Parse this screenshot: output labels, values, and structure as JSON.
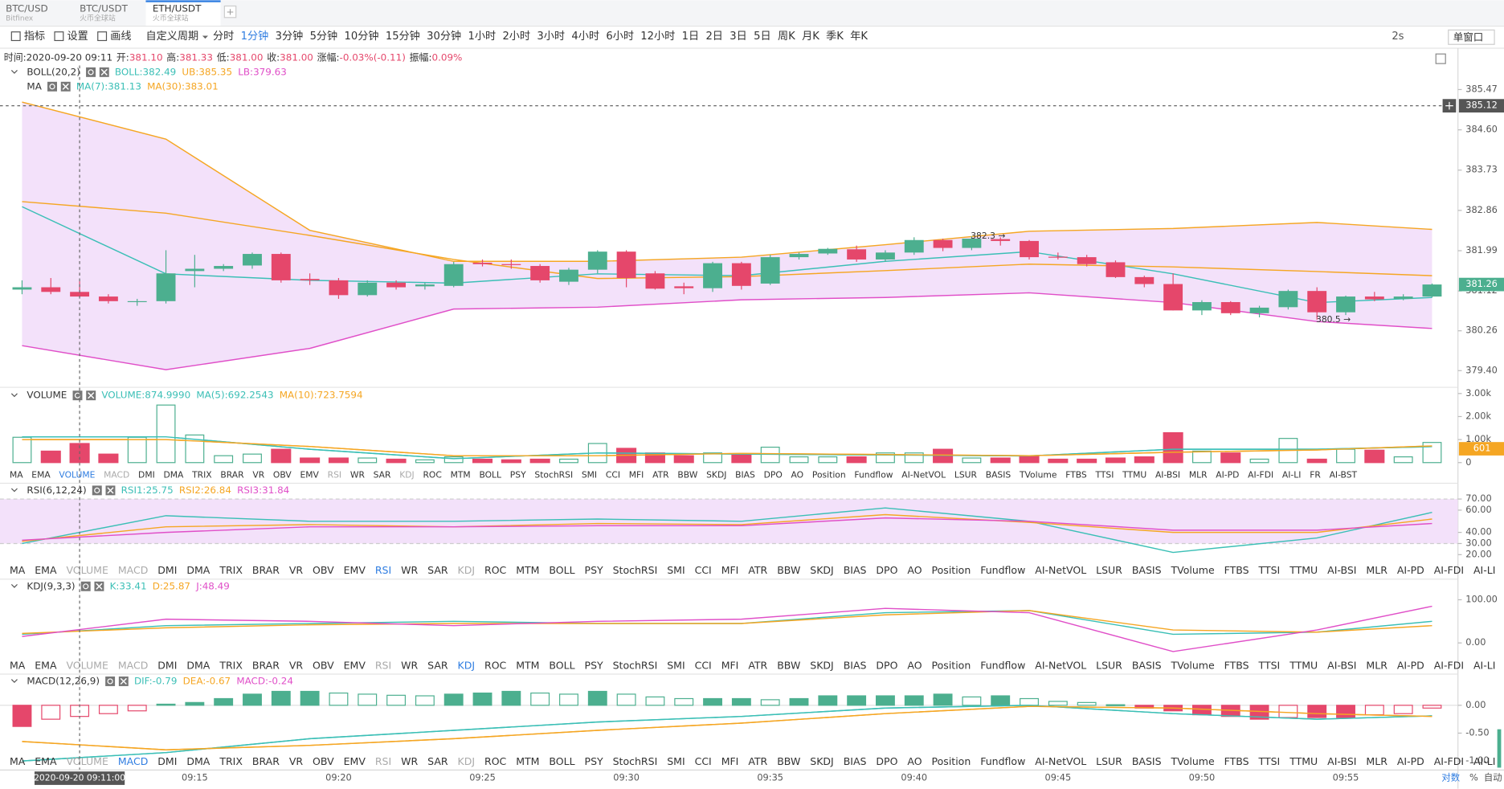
{
  "tabs": [
    {
      "symbol": "BTC/USD",
      "exchange": "Bitfinex"
    },
    {
      "symbol": "BTC/USDT",
      "exchange": "火币全球站"
    },
    {
      "symbol": "ETH/USDT",
      "exchange": "火币全球站"
    }
  ],
  "toolbar": {
    "tools": [
      "指标",
      "设置",
      "画线"
    ],
    "custom": "自定义周期",
    "periods": [
      "分时",
      "1分钟",
      "3分钟",
      "5分钟",
      "10分钟",
      "15分钟",
      "30分钟",
      "1小时",
      "2小时",
      "3小时",
      "4小时",
      "6小时",
      "12小时",
      "1日",
      "2日",
      "3日",
      "5日",
      "周K",
      "月K",
      "季K",
      "年K"
    ],
    "active_period": 1,
    "refresh": "2s",
    "window": "单窗口"
  },
  "info": [
    {
      "label": "时间:",
      "value": "2020-09-20 09:11",
      "color": "#333333"
    },
    {
      "label": "开:",
      "value": "381.10",
      "color": "#e5476b"
    },
    {
      "label": "高:",
      "value": "381.33",
      "color": "#e5476b"
    },
    {
      "label": "低:",
      "value": "381.00",
      "color": "#e5476b"
    },
    {
      "label": "收:",
      "value": "381.00",
      "color": "#e5476b"
    },
    {
      "label": "涨幅:",
      "value": "-0.03%(-0.11)",
      "color": "#e5476b"
    },
    {
      "label": "振幅:",
      "value": "0.09%",
      "color": "#e5476b"
    }
  ],
  "indicators": [
    "MA",
    "EMA",
    "VOLUME",
    "MACD",
    "DMI",
    "DMA",
    "TRIX",
    "BRAR",
    "VR",
    "OBV",
    "EMV",
    "RSI",
    "WR",
    "SAR",
    "KDJ",
    "ROC",
    "MTM",
    "BOLL",
    "PSY",
    "StochRSI",
    "SMI",
    "CCI",
    "MFI",
    "ATR",
    "BBW",
    "SKDJ",
    "BIAS",
    "DPO",
    "AO",
    "Position",
    "Fundflow",
    "AI-NetVOL",
    "LSUR",
    "BASIS",
    "TVolume",
    "FTBS",
    "TTSI",
    "TTMU",
    "AI-BSI",
    "MLR",
    "AI-PD",
    "AI-FDI",
    "AI-LI",
    "FR",
    "AI-BST"
  ],
  "footer": [
    "对数",
    "%",
    "自动"
  ],
  "chart_data": [
    {
      "type": "candlestick",
      "up_color": "#4caf8f",
      "down_color": "#e5476b",
      "legend_rows": [
        {
          "title": "BOLL(20,2)",
          "items": [
            {
              "text": "BOLL:382.49",
              "color": "#3bbfb6"
            },
            {
              "text": "UB:385.35",
              "color": "#f5a623"
            },
            {
              "text": "LB:379.63",
              "color": "#e04fc8"
            }
          ]
        },
        {
          "title": "MA",
          "items": [
            {
              "text": "MA(7):381.13",
              "color": "#3bbfb6"
            },
            {
              "text": "MA(30):383.01",
              "color": "#f5a623"
            }
          ]
        }
      ],
      "categories": [
        null,
        null,
        null,
        null,
        null,
        null,
        "09:15",
        null,
        null,
        null,
        null,
        "09:20",
        null,
        null,
        null,
        null,
        "09:25",
        null,
        null,
        null,
        null,
        "09:30",
        null,
        null,
        null,
        null,
        "09:35",
        null,
        null,
        null,
        null,
        "09:40",
        null,
        null,
        null,
        null,
        "09:45",
        null,
        null,
        null,
        null,
        "09:50",
        null,
        null,
        null,
        null,
        "09:55",
        null,
        null,
        null
      ],
      "candles": [
        [
          381.15,
          381.35,
          381.05,
          381.2
        ],
        [
          381.2,
          381.4,
          381.05,
          381.1
        ],
        [
          381.1,
          381.33,
          381.0,
          381.0
        ],
        [
          381.0,
          381.05,
          380.85,
          380.9
        ],
        [
          380.88,
          380.95,
          380.8,
          380.9
        ],
        [
          380.9,
          382.0,
          380.85,
          381.5
        ],
        [
          381.55,
          381.9,
          381.2,
          381.6
        ],
        [
          381.6,
          381.7,
          381.55,
          381.66
        ],
        [
          381.67,
          381.95,
          381.6,
          381.92
        ],
        [
          381.92,
          381.95,
          381.3,
          381.35
        ],
        [
          381.38,
          381.5,
          381.25,
          381.35
        ],
        [
          381.35,
          381.4,
          380.95,
          381.03
        ],
        [
          381.03,
          381.35,
          381.0,
          381.3
        ],
        [
          381.3,
          381.35,
          381.15,
          381.2
        ],
        [
          381.22,
          381.3,
          381.15,
          381.26
        ],
        [
          381.23,
          381.75,
          381.2,
          381.7
        ],
        [
          381.73,
          381.8,
          381.65,
          381.7
        ],
        [
          381.7,
          381.8,
          381.6,
          381.69
        ],
        [
          381.66,
          381.7,
          381.3,
          381.35
        ],
        [
          381.32,
          381.62,
          381.25,
          381.58
        ],
        [
          381.58,
          382.0,
          381.5,
          381.97
        ],
        [
          381.97,
          382.0,
          381.2,
          381.4
        ],
        [
          381.5,
          381.55,
          381.15,
          381.17
        ],
        [
          381.22,
          381.3,
          381.05,
          381.18
        ],
        [
          381.18,
          381.75,
          381.1,
          381.72
        ],
        [
          381.72,
          381.75,
          381.15,
          381.23
        ],
        [
          381.28,
          381.9,
          381.25,
          381.85
        ],
        [
          381.85,
          381.95,
          381.8,
          381.92
        ],
        [
          381.93,
          382.05,
          381.9,
          382.03
        ],
        [
          382.02,
          382.1,
          381.75,
          381.8
        ],
        [
          381.8,
          382.0,
          381.75,
          381.95
        ],
        [
          381.95,
          382.28,
          381.9,
          382.22
        ],
        [
          382.22,
          382.25,
          381.98,
          382.05
        ],
        [
          382.05,
          382.3,
          382.0,
          382.25
        ],
        [
          382.24,
          382.28,
          382.1,
          382.2
        ],
        [
          382.2,
          382.22,
          381.8,
          381.85
        ],
        [
          381.86,
          381.95,
          381.8,
          381.85
        ],
        [
          381.85,
          381.9,
          381.65,
          381.7
        ],
        [
          381.74,
          381.78,
          381.4,
          381.42
        ],
        [
          381.42,
          381.45,
          381.2,
          381.27
        ],
        [
          381.27,
          381.5,
          380.7,
          380.7
        ],
        [
          380.7,
          380.92,
          380.6,
          380.88
        ],
        [
          380.88,
          380.9,
          380.6,
          380.64
        ],
        [
          380.64,
          380.8,
          380.55,
          380.76
        ],
        [
          380.77,
          381.15,
          380.72,
          381.12
        ],
        [
          381.12,
          381.2,
          380.5,
          380.66
        ],
        [
          380.66,
          381.02,
          380.6,
          381.0
        ],
        [
          381.0,
          381.1,
          380.9,
          380.94
        ],
        [
          380.95,
          381.05,
          380.92,
          381.0
        ],
        [
          381.0,
          381.28,
          380.98,
          381.26
        ]
      ],
      "line_x": [
        0,
        5,
        10,
        15,
        20,
        25,
        30,
        35,
        40,
        45,
        49
      ],
      "band_fill": "#f3e1fa",
      "lines": [
        {
          "color": "#f5a623",
          "values": [
            385.2,
            384.4,
            382.43,
            381.76,
            381.76,
            381.85,
            382.12,
            382.41,
            382.47,
            382.6,
            382.45
          ]
        },
        {
          "color": "#e04fc8",
          "values": [
            379.94,
            379.42,
            379.88,
            380.73,
            380.77,
            380.93,
            380.98,
            381.08,
            380.87,
            380.46,
            380.31
          ]
        },
        {
          "color": "#3bbfb6",
          "values": [
            382.94,
            381.49,
            381.35,
            381.29,
            381.49,
            381.45,
            381.76,
            381.97,
            381.49,
            380.87,
            380.98
          ]
        },
        {
          "color": "#f5a623",
          "values": [
            383.05,
            382.8,
            382.32,
            381.8,
            381.39,
            381.43,
            381.56,
            381.7,
            381.64,
            381.54,
            381.45
          ]
        }
      ],
      "ylim": [
        379.05,
        385.99
      ],
      "yticks": [
        385.47,
        {
          "value": 384.6,
          "label": "384.60"
        },
        383.73,
        382.86,
        381.99,
        381.12,
        380.26,
        {
          "value": 379.4,
          "label": "379.40"
        }
      ],
      "annotations": [
        {
          "text": "382.3 →",
          "index": 33,
          "value": 382.3
        },
        {
          "text": "380.5 →",
          "index": 45,
          "value": 380.5
        }
      ],
      "cursor": {
        "index": 2,
        "price": 385.12,
        "label": "2020-09-20 09:11:00"
      },
      "last_price": 381.26
    },
    {
      "type": "volume",
      "selected": 2,
      "legend_rows": [
        {
          "title": "VOLUME",
          "items": [
            {
              "text": "VOLUME:874.9990",
              "color": "#3bbfb6"
            },
            {
              "text": "MA(5):692.2543",
              "color": "#3bbfb6"
            },
            {
              "text": "MA(10):723.7594",
              "color": "#f5a623"
            }
          ]
        }
      ],
      "values": [
        1100,
        500,
        830,
        370,
        1100,
        2500,
        1200,
        300,
        370,
        580,
        200,
        200,
        200,
        150,
        120,
        250,
        150,
        120,
        150,
        150,
        830,
        620,
        420,
        300,
        420,
        330,
        670,
        250,
        250,
        250,
        420,
        420,
        580,
        200,
        200,
        300,
        150,
        150,
        200,
        250,
        1300,
        500,
        420,
        150,
        1050,
        150,
        580,
        540,
        250,
        875
      ],
      "line_x": [
        0,
        5,
        10,
        15,
        20,
        25,
        30,
        35,
        40,
        45,
        49
      ],
      "lines": [
        {
          "color": "#3bbfb6",
          "values": [
            1120,
            1120,
            580,
            170,
            420,
            370,
            330,
            290,
            580,
            580,
            692
          ]
        },
        {
          "color": "#f5a623",
          "values": [
            1000,
            1000,
            700,
            300,
            300,
            400,
            350,
            300,
            450,
            550,
            724
          ]
        }
      ],
      "ylim": [
        -125,
        3250
      ],
      "yticks": [
        0,
        {
          "value": 1000,
          "label": "1.00k"
        },
        {
          "value": 2000,
          "label": "2.00k"
        },
        {
          "value": 3000,
          "label": "3.00k"
        }
      ],
      "marker": 601
    },
    {
      "type": "line",
      "selected": 11,
      "legend_rows": [
        {
          "title": "RSI(6,12,24)",
          "items": [
            {
              "text": "RSI1:25.75",
              "color": "#3bbfb6"
            },
            {
              "text": "RSI2:26.84",
              "color": "#f5a623"
            },
            {
              "text": "RSI3:31.84",
              "color": "#e04fc8"
            }
          ]
        }
      ],
      "band": [
        30,
        70
      ],
      "band_fill": "#f3e1fa",
      "line_x": [
        0,
        5,
        10,
        15,
        20,
        25,
        30,
        35,
        40,
        45,
        49
      ],
      "lines": [
        {
          "color": "#3bbfb6",
          "values": [
            30,
            55,
            50,
            50,
            52,
            50,
            62,
            50,
            22,
            35,
            58
          ]
        },
        {
          "color": "#f5a623",
          "values": [
            32,
            45,
            47,
            45,
            48,
            47,
            56,
            49,
            40,
            40,
            52
          ]
        },
        {
          "color": "#e04fc8",
          "values": [
            33,
            40,
            45,
            45,
            46,
            46,
            53,
            50,
            42,
            42,
            48
          ]
        }
      ],
      "ylim": [
        12.2,
        82.9
      ],
      "yticks": [
        {
          "value": 20,
          "label": "20.00"
        },
        {
          "value": 30,
          "label": "30.00"
        },
        {
          "value": 40,
          "label": "40.00"
        },
        {
          "value": 60,
          "label": "60.00"
        },
        {
          "value": 70,
          "label": "70.00"
        }
      ]
    },
    {
      "type": "line",
      "selected": 14,
      "legend_rows": [
        {
          "title": "KDJ(9,3,3)",
          "items": [
            {
              "text": "K:33.41",
              "color": "#3bbfb6"
            },
            {
              "text": "D:25.87",
              "color": "#f5a623"
            },
            {
              "text": "J:48.49",
              "color": "#e04fc8"
            }
          ]
        }
      ],
      "line_x": [
        0,
        5,
        10,
        15,
        20,
        25,
        30,
        35,
        40,
        45,
        49
      ],
      "lines": [
        {
          "color": "#3bbfb6",
          "values": [
            20,
            40,
            45,
            50,
            45,
            45,
            70,
            75,
            20,
            25,
            50
          ]
        },
        {
          "color": "#f5a623",
          "values": [
            22,
            35,
            42,
            45,
            45,
            45,
            65,
            75,
            30,
            25,
            40
          ]
        },
        {
          "color": "#e04fc8",
          "values": [
            15,
            55,
            50,
            40,
            50,
            55,
            80,
            70,
            -20,
            30,
            85
          ]
        }
      ],
      "ylim": [
        -35.6,
        144.4
      ],
      "yticks": [
        {
          "value": 0,
          "label": "0.00"
        },
        {
          "value": 100,
          "label": "100.00"
        }
      ]
    },
    {
      "type": "macd",
      "selected": 3,
      "up_color": "#4caf8f",
      "down_color": "#e5476b",
      "legend_rows": [
        {
          "title": "MACD(12,26,9)",
          "items": [
            {
              "text": "DIF:-0.79",
              "color": "#3bbfb6"
            },
            {
              "text": "DEA:-0.67",
              "color": "#f5a623"
            },
            {
              "text": "MACD:-0.24",
              "color": "#e04fc8"
            }
          ]
        }
      ],
      "values": [
        -0.38,
        -0.25,
        -0.2,
        -0.15,
        -0.1,
        0.02,
        0.05,
        0.12,
        0.2,
        0.25,
        0.25,
        0.22,
        0.2,
        0.18,
        0.17,
        0.2,
        0.22,
        0.25,
        0.22,
        0.2,
        0.25,
        0.2,
        0.15,
        0.12,
        0.12,
        0.12,
        0.1,
        0.12,
        0.17,
        0.17,
        0.17,
        0.17,
        0.2,
        0.15,
        0.17,
        0.12,
        0.07,
        0.05,
        0.01,
        -0.05,
        -0.1,
        -0.17,
        -0.2,
        -0.25,
        -0.22,
        -0.22,
        -0.22,
        -0.17,
        -0.15,
        -0.05
      ],
      "line_x": [
        0,
        5,
        10,
        15,
        20,
        25,
        30,
        35,
        40,
        45,
        49
      ],
      "lines": [
        {
          "color": "#3bbfb6",
          "values": [
            -1.0,
            -0.85,
            -0.6,
            -0.45,
            -0.3,
            -0.2,
            -0.05,
            0.0,
            -0.15,
            -0.25,
            -0.19
          ]
        },
        {
          "color": "#f5a623",
          "values": [
            -0.65,
            -0.8,
            -0.72,
            -0.6,
            -0.45,
            -0.32,
            -0.15,
            -0.02,
            -0.05,
            -0.15,
            -0.2
          ]
        }
      ],
      "ylim": [
        -1.12,
        0.534
      ],
      "yticks": [
        {
          "value": 0,
          "label": "0.00"
        },
        {
          "value": -0.5,
          "label": "-0.50"
        },
        {
          "value": -1,
          "label": "-1.00"
        }
      ]
    }
  ]
}
